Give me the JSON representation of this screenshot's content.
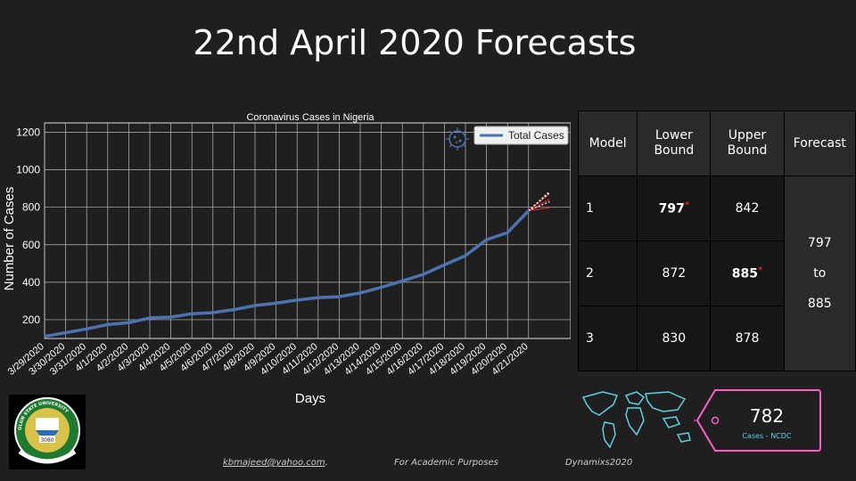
{
  "slide_title": "22nd April 2020 Forecasts",
  "chart_data": {
    "type": "line",
    "title": "Coronavirus Cases in Nigeria",
    "xlabel": "Days",
    "ylabel": "Number of Cases",
    "categories": [
      "3/29/2020",
      "3/30/2020",
      "3/31/2020",
      "4/1/2020",
      "4/2/2020",
      "4/3/2020",
      "4/4/2020",
      "4/5/2020",
      "4/6/2020",
      "4/7/2020",
      "4/8/2020",
      "4/9/2020",
      "4/10/2020",
      "4/11/2020",
      "4/12/2020",
      "4/13/2020",
      "4/14/2020",
      "4/15/2020",
      "4/16/2020",
      "4/17/2020",
      "4/18/2020",
      "4/19/2020",
      "4/20/2020",
      "4/21/2020"
    ],
    "series": [
      {
        "name": "Total Cases",
        "color": "#4c72b0",
        "values": [
          111,
          131,
          151,
          174,
          184,
          210,
          214,
          232,
          238,
          254,
          276,
          288,
          305,
          318,
          323,
          343,
          373,
          407,
          442,
          493,
          542,
          627,
          665,
          782
        ]
      }
    ],
    "forecast_lines": [
      {
        "color": "#d62728",
        "values": [
          782,
          797
        ]
      },
      {
        "color": "#d62728",
        "values": [
          782,
          842
        ]
      },
      {
        "color": "#d62728",
        "values": [
          782,
          872
        ]
      },
      {
        "color": "#ffffff",
        "values": [
          782,
          885
        ]
      },
      {
        "color": "#ffffff",
        "values": [
          782,
          830
        ]
      },
      {
        "color": "#ffffff",
        "values": [
          782,
          878
        ]
      }
    ],
    "yticks": [
      200,
      400,
      600,
      800,
      1000,
      1200
    ],
    "ylim": [
      100,
      1250
    ],
    "grid": true,
    "legend_position": "top-right"
  },
  "table": {
    "headers": [
      "Model",
      "Lower Bound",
      "Upper Bound",
      "Forecast"
    ],
    "rows": [
      {
        "model": "1",
        "lower": "797",
        "upper": "842",
        "lower_star": "*",
        "upper_star": ""
      },
      {
        "model": "2",
        "lower": "872",
        "upper": "885",
        "lower_star": "",
        "upper_star": "*"
      },
      {
        "model": "3",
        "lower": "830",
        "upper": "878",
        "lower_star": "",
        "upper_star": ""
      }
    ],
    "forecast_low": "797",
    "forecast_to": "to",
    "forecast_high": "885"
  },
  "tag": {
    "value": "782",
    "caption": "Cases - NCDC"
  },
  "logo_text": {
    "top": "OLUN STATE UNIVERSITY",
    "number": "3080"
  },
  "footer": {
    "email": "kbmajeed@yahoo.com",
    "email_suffix": ".",
    "note": "For Academic Purposes",
    "brand": "Dynamixs2020"
  },
  "colors": {
    "background": "#1f1f1f",
    "line": "#4c72b0",
    "forecast": "#d62728",
    "neon_cyan": "#5ed0e0",
    "neon_pink": "#ff5ec8"
  }
}
